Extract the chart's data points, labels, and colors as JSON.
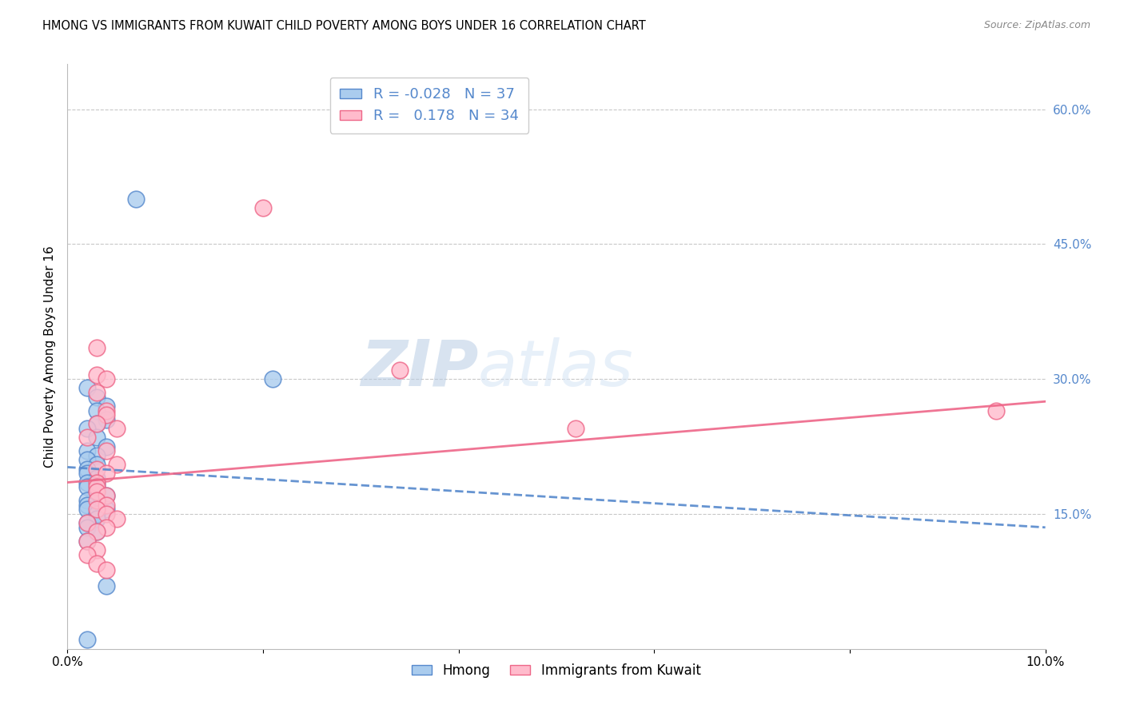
{
  "title": "HMONG VS IMMIGRANTS FROM KUWAIT CHILD POVERTY AMONG BOYS UNDER 16 CORRELATION CHART",
  "source": "Source: ZipAtlas.com",
  "ylabel": "Child Poverty Among Boys Under 16",
  "xmin": 0.0,
  "xmax": 0.1,
  "ymin": 0.0,
  "ymax": 0.65,
  "xticks": [
    0.0,
    0.02,
    0.04,
    0.06,
    0.08,
    0.1
  ],
  "xtick_labels": [
    "0.0%",
    "",
    "",
    "",
    "",
    "10.0%"
  ],
  "yticks_right": [
    0.15,
    0.3,
    0.45,
    0.6
  ],
  "ytick_right_labels": [
    "15.0%",
    "30.0%",
    "45.0%",
    "60.0%"
  ],
  "grid_color": "#c8c8c8",
  "legend_R1": "-0.028",
  "legend_N1": "37",
  "legend_R2": "0.178",
  "legend_N2": "34",
  "blue_color": "#5588cc",
  "blue_fill": "#aaccee",
  "pink_color": "#ee6688",
  "pink_fill": "#ffbbcc",
  "watermark_zip": "ZIP",
  "watermark_atlas": "atlas",
  "hmong_x": [
    0.007,
    0.021,
    0.002,
    0.003,
    0.004,
    0.003,
    0.004,
    0.003,
    0.002,
    0.003,
    0.004,
    0.002,
    0.003,
    0.002,
    0.003,
    0.002,
    0.002,
    0.003,
    0.002,
    0.003,
    0.003,
    0.002,
    0.003,
    0.004,
    0.002,
    0.003,
    0.002,
    0.002,
    0.004,
    0.003,
    0.003,
    0.002,
    0.002,
    0.003,
    0.002,
    0.004,
    0.002
  ],
  "hmong_y": [
    0.5,
    0.3,
    0.29,
    0.28,
    0.27,
    0.265,
    0.255,
    0.25,
    0.245,
    0.235,
    0.225,
    0.22,
    0.215,
    0.21,
    0.205,
    0.2,
    0.195,
    0.19,
    0.185,
    0.185,
    0.18,
    0.18,
    0.175,
    0.17,
    0.165,
    0.165,
    0.16,
    0.155,
    0.155,
    0.15,
    0.145,
    0.14,
    0.135,
    0.13,
    0.12,
    0.07,
    0.01
  ],
  "kuwait_x": [
    0.02,
    0.003,
    0.034,
    0.003,
    0.004,
    0.003,
    0.004,
    0.004,
    0.003,
    0.005,
    0.002,
    0.004,
    0.005,
    0.003,
    0.004,
    0.003,
    0.003,
    0.003,
    0.004,
    0.003,
    0.004,
    0.003,
    0.052,
    0.004,
    0.005,
    0.002,
    0.004,
    0.003,
    0.002,
    0.003,
    0.095,
    0.002,
    0.003,
    0.004
  ],
  "kuwait_y": [
    0.49,
    0.335,
    0.31,
    0.305,
    0.3,
    0.285,
    0.265,
    0.26,
    0.25,
    0.245,
    0.235,
    0.22,
    0.205,
    0.2,
    0.195,
    0.185,
    0.18,
    0.175,
    0.17,
    0.165,
    0.16,
    0.155,
    0.245,
    0.15,
    0.145,
    0.14,
    0.135,
    0.13,
    0.12,
    0.11,
    0.265,
    0.105,
    0.095,
    0.088
  ],
  "hmong_line_y0": 0.202,
  "hmong_line_y1": 0.135,
  "kuwait_line_y0": 0.185,
  "kuwait_line_y1": 0.275
}
